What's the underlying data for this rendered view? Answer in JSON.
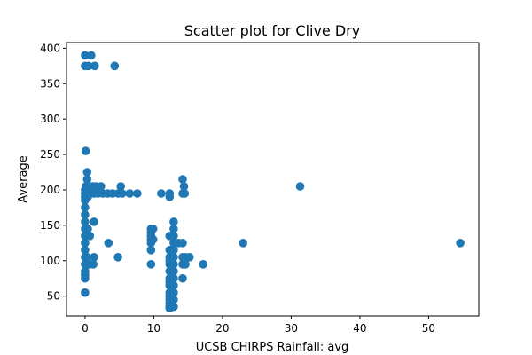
{
  "chart_data": {
    "type": "scatter",
    "title": "Scatter plot for Clive Dry",
    "xlabel": "UCSB CHIRPS Rainfall: avg",
    "ylabel": "Average",
    "xlim": [
      -2.7,
      57.3
    ],
    "ylim": [
      22,
      408
    ],
    "xticks": [
      0,
      10,
      20,
      30,
      40,
      50
    ],
    "yticks": [
      50,
      100,
      150,
      200,
      250,
      300,
      350,
      400
    ],
    "grid": false,
    "marker_color": "#1f77b4",
    "points": [
      [
        0,
        390
      ],
      [
        0.9,
        390
      ],
      [
        0,
        375
      ],
      [
        0.5,
        375
      ],
      [
        1.4,
        375
      ],
      [
        4.3,
        375
      ],
      [
        0.1,
        255
      ],
      [
        0.3,
        225
      ],
      [
        0.3,
        215
      ],
      [
        0.1,
        205
      ],
      [
        0.4,
        205
      ],
      [
        0.8,
        205
      ],
      [
        1.2,
        205
      ],
      [
        1.6,
        205
      ],
      [
        2.3,
        205
      ],
      [
        5.2,
        205
      ],
      [
        0,
        200
      ],
      [
        0.5,
        200
      ],
      [
        1.1,
        200
      ],
      [
        0,
        195
      ],
      [
        0.3,
        195
      ],
      [
        0.7,
        195
      ],
      [
        1.3,
        195
      ],
      [
        1.9,
        195
      ],
      [
        2.6,
        195
      ],
      [
        3.3,
        195
      ],
      [
        4.0,
        195
      ],
      [
        4.8,
        195
      ],
      [
        5.4,
        195
      ],
      [
        6.5,
        195
      ],
      [
        7.6,
        195
      ],
      [
        0,
        190
      ],
      [
        0.4,
        190
      ],
      [
        0,
        185
      ],
      [
        0,
        175
      ],
      [
        0,
        165
      ],
      [
        0,
        155
      ],
      [
        1.3,
        155
      ],
      [
        0,
        145
      ],
      [
        0.4,
        145
      ],
      [
        0,
        135
      ],
      [
        0.7,
        135
      ],
      [
        0,
        125
      ],
      [
        3.4,
        125
      ],
      [
        0,
        115
      ],
      [
        0,
        105
      ],
      [
        0.3,
        105
      ],
      [
        1.3,
        105
      ],
      [
        4.8,
        105
      ],
      [
        0,
        95
      ],
      [
        0.6,
        95
      ],
      [
        1.2,
        95
      ],
      [
        0,
        85
      ],
      [
        0,
        75
      ],
      [
        0,
        80
      ],
      [
        0,
        55
      ],
      [
        9.6,
        145
      ],
      [
        9.9,
        145
      ],
      [
        9.6,
        140
      ],
      [
        9.6,
        135
      ],
      [
        9.6,
        130
      ],
      [
        9.9,
        130
      ],
      [
        9.6,
        125
      ],
      [
        9.6,
        115
      ],
      [
        9.6,
        95
      ],
      [
        11.1,
        195
      ],
      [
        12.3,
        195
      ],
      [
        12.3,
        190
      ],
      [
        12.3,
        135
      ],
      [
        12.3,
        115
      ],
      [
        12.3,
        105
      ],
      [
        12.3,
        100
      ],
      [
        12.3,
        95
      ],
      [
        12.3,
        85
      ],
      [
        12.3,
        75
      ],
      [
        12.3,
        70
      ],
      [
        12.3,
        65
      ],
      [
        12.3,
        55
      ],
      [
        12.3,
        50
      ],
      [
        12.3,
        45
      ],
      [
        12.3,
        40
      ],
      [
        12.3,
        35
      ],
      [
        12.3,
        33
      ],
      [
        12.9,
        155
      ],
      [
        12.9,
        145
      ],
      [
        12.9,
        135
      ],
      [
        12.9,
        125
      ],
      [
        12.9,
        115
      ],
      [
        12.9,
        105
      ],
      [
        12.9,
        95
      ],
      [
        12.9,
        85
      ],
      [
        12.9,
        75
      ],
      [
        12.9,
        65
      ],
      [
        12.9,
        55
      ],
      [
        12.9,
        45
      ],
      [
        12.9,
        35
      ],
      [
        13.6,
        125
      ],
      [
        14.2,
        215
      ],
      [
        14.4,
        205
      ],
      [
        14.2,
        195
      ],
      [
        14.5,
        195
      ],
      [
        14.2,
        125
      ],
      [
        14.2,
        105
      ],
      [
        14.6,
        105
      ],
      [
        15.2,
        105
      ],
      [
        14.2,
        95
      ],
      [
        14.6,
        95
      ],
      [
        14.2,
        75
      ],
      [
        17.2,
        95
      ],
      [
        23.0,
        125
      ],
      [
        31.3,
        205
      ],
      [
        54.6,
        125
      ]
    ]
  }
}
